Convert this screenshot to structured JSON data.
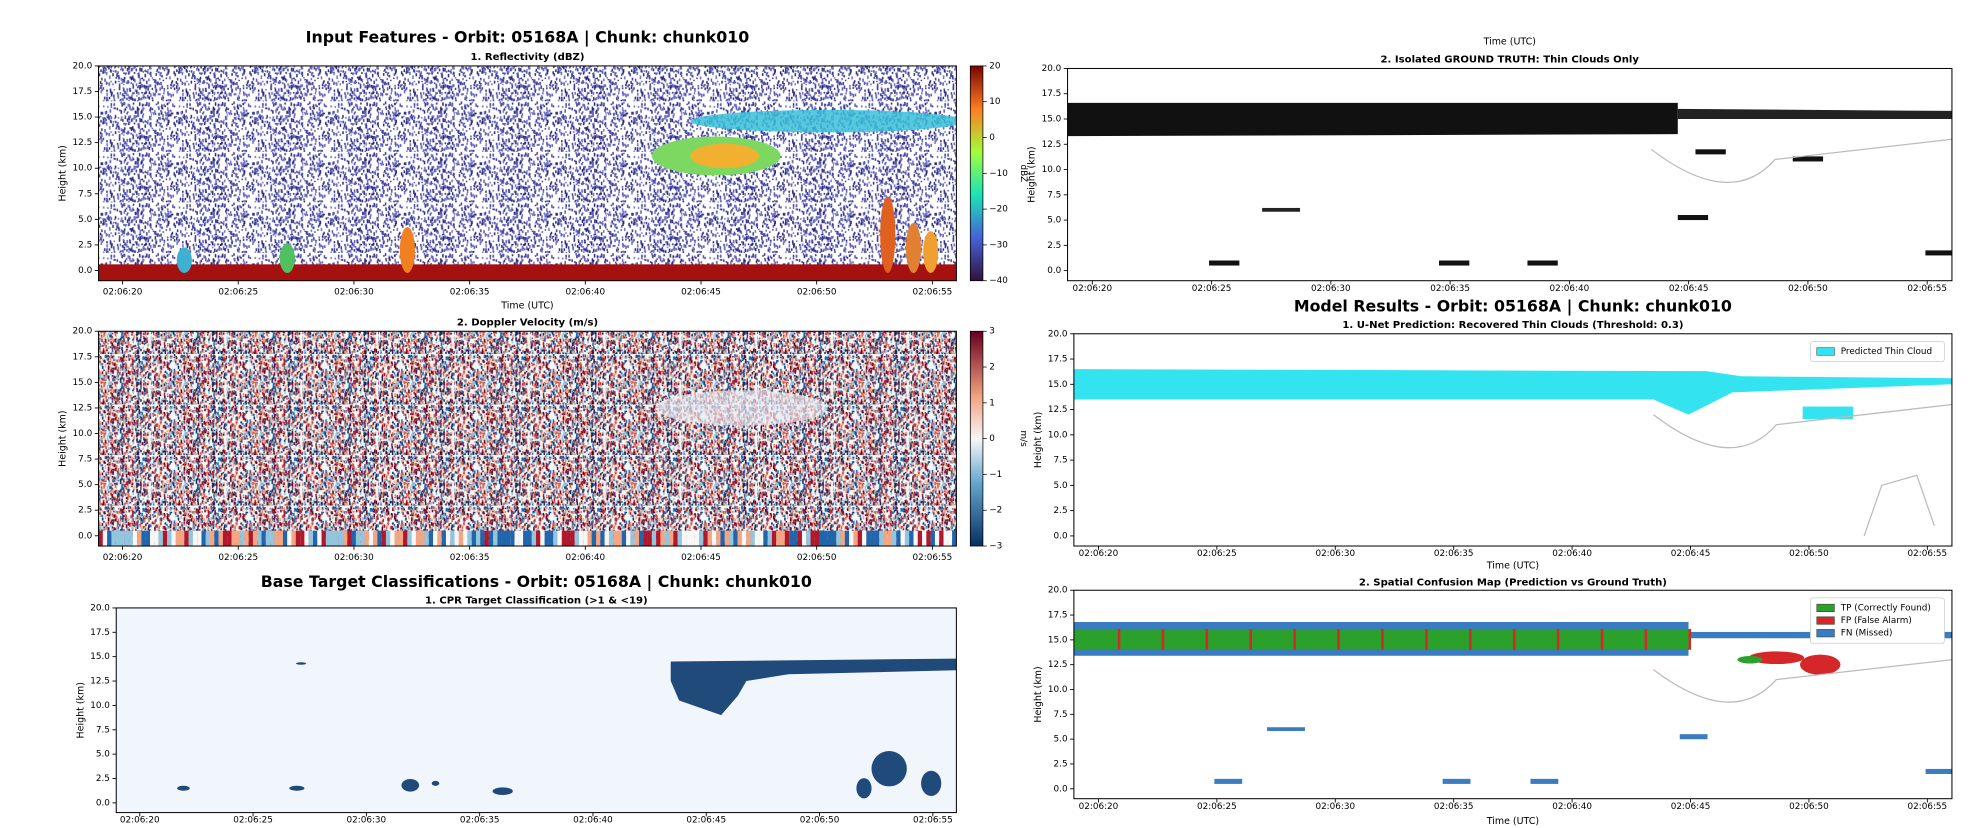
{
  "chart_data": [
    {
      "type": "heatmap",
      "title": "Input Features - Orbit: 05168A | Chunk: chunk010",
      "subtitle": "1. Reflectivity (dBZ)",
      "ylabel": "Height (km)",
      "xlabel": "Time (UTC)",
      "ylim": [
        -1,
        20
      ],
      "yticks": [
        {
          "value": 0,
          "label": "0.0"
        },
        {
          "value": 2.5,
          "label": "2.5"
        },
        {
          "value": 5,
          "label": "5.0"
        },
        {
          "value": 7.5,
          "label": "7.5"
        },
        {
          "value": 10,
          "label": "10.0"
        },
        {
          "value": 12.5,
          "label": "12.5"
        },
        {
          "value": 15,
          "label": "15.0"
        },
        {
          "value": 17.5,
          "label": "17.5"
        },
        {
          "value": 20,
          "label": "20.0"
        }
      ],
      "xticks": [
        "02:06:20",
        "02:06:25",
        "02:06:30",
        "02:06:35",
        "02:06:40",
        "02:06:45",
        "02:06:50",
        "02:06:55"
      ],
      "colorbar": {
        "label": "dBZ",
        "lim": [
          -40,
          20
        ],
        "ticks": [
          20,
          10,
          0,
          {
            "value": -10,
            "label": "−10"
          },
          {
            "value": -20,
            "label": "−20"
          },
          {
            "value": -30,
            "label": "−30"
          },
          {
            "value": -40,
            "label": "−40"
          }
        ]
      }
    },
    {
      "type": "heatmap",
      "subtitle": "2. Doppler Velocity (m/s)",
      "ylabel": "Height (km)",
      "ylim": [
        -1,
        20
      ],
      "yticks": [
        {
          "value": 0,
          "label": "0.0"
        },
        {
          "value": 2.5,
          "label": "2.5"
        },
        {
          "value": 5,
          "label": "5.0"
        },
        {
          "value": 7.5,
          "label": "7.5"
        },
        {
          "value": 10,
          "label": "10.0"
        },
        {
          "value": 12.5,
          "label": "12.5"
        },
        {
          "value": 15,
          "label": "15.0"
        },
        {
          "value": 17.5,
          "label": "17.5"
        },
        {
          "value": 20,
          "label": "20.0"
        }
      ],
      "xticks": [
        "02:06:20",
        "02:06:25",
        "02:06:30",
        "02:06:35",
        "02:06:40",
        "02:06:45",
        "02:06:50",
        "02:06:55"
      ],
      "colorbar": {
        "label": "m/s",
        "lim": [
          -3,
          3
        ],
        "ticks": [
          3,
          2,
          1,
          0,
          {
            "value": -1,
            "label": "−1"
          },
          {
            "value": -2,
            "label": "−2"
          },
          {
            "value": -3,
            "label": "−3"
          }
        ]
      }
    },
    {
      "type": "heatmap",
      "title": "Base Target Classifications - Orbit: 05168A | Chunk: chunk010",
      "subtitle": "1. CPR Target Classification (>1 & <19)",
      "ylabel": "Height (km)",
      "ylim": [
        -1,
        20
      ],
      "yticks": [
        {
          "value": 0,
          "label": "0.0"
        },
        {
          "value": 2.5,
          "label": "2.5"
        },
        {
          "value": 5,
          "label": "5.0"
        },
        {
          "value": 7.5,
          "label": "7.5"
        },
        {
          "value": 10,
          "label": "10.0"
        },
        {
          "value": 12.5,
          "label": "12.5"
        },
        {
          "value": 15,
          "label": "15.0"
        },
        {
          "value": 17.5,
          "label": "17.5"
        },
        {
          "value": 20,
          "label": "20.0"
        }
      ],
      "xticks": [
        "02:06:20",
        "02:06:25",
        "02:06:30",
        "02:06:35",
        "02:06:40",
        "02:06:45",
        "02:06:50",
        "02:06:55"
      ]
    },
    {
      "type": "heatmap",
      "title": "Time (UTC)",
      "subtitle": "2. Isolated GROUND TRUTH: Thin Clouds Only",
      "ylabel": "Height (km)",
      "ylim": [
        -1,
        20
      ],
      "yticks": [
        {
          "value": 0,
          "label": "0.0"
        },
        {
          "value": 2.5,
          "label": "2.5"
        },
        {
          "value": 5,
          "label": "5.0"
        },
        {
          "value": 7.5,
          "label": "7.5"
        },
        {
          "value": 10,
          "label": "10.0"
        },
        {
          "value": 12.5,
          "label": "12.5"
        },
        {
          "value": 15,
          "label": "15.0"
        },
        {
          "value": 17.5,
          "label": "17.5"
        },
        {
          "value": 20,
          "label": "20.0"
        }
      ],
      "xticks": [
        "02:06:20",
        "02:06:25",
        "02:06:30",
        "02:06:35",
        "02:06:40",
        "02:06:45",
        "02:06:50",
        "02:06:55"
      ]
    },
    {
      "type": "heatmap",
      "title": "Model Results - Orbit: 05168A | Chunk: chunk010",
      "subtitle": "1. U-Net Prediction: Recovered Thin Clouds (Threshold: 0.3)",
      "ylabel": "Height (km)",
      "xlabel": "Time (UTC)",
      "ylim": [
        -1,
        20
      ],
      "yticks": [
        {
          "value": 0,
          "label": "0.0"
        },
        {
          "value": 2.5,
          "label": "2.5"
        },
        {
          "value": 5,
          "label": "5.0"
        },
        {
          "value": 7.5,
          "label": "7.5"
        },
        {
          "value": 10,
          "label": "10.0"
        },
        {
          "value": 12.5,
          "label": "12.5"
        },
        {
          "value": 15,
          "label": "15.0"
        },
        {
          "value": 17.5,
          "label": "17.5"
        },
        {
          "value": 20,
          "label": "20.0"
        }
      ],
      "xticks": [
        "02:06:20",
        "02:06:25",
        "02:06:30",
        "02:06:35",
        "02:06:40",
        "02:06:45",
        "02:06:50",
        "02:06:55"
      ],
      "legend": [
        {
          "name": "Predicted Thin Cloud",
          "color": "#33e3f0"
        }
      ]
    },
    {
      "type": "heatmap",
      "subtitle": "2. Spatial Confusion Map (Prediction vs Ground Truth)",
      "ylabel": "Height (km)",
      "xlabel": "Time (UTC)",
      "ylim": [
        -1,
        20
      ],
      "yticks": [
        {
          "value": 0,
          "label": "0.0"
        },
        {
          "value": 2.5,
          "label": "2.5"
        },
        {
          "value": 5,
          "label": "5.0"
        },
        {
          "value": 7.5,
          "label": "7.5"
        },
        {
          "value": 10,
          "label": "10.0"
        },
        {
          "value": 12.5,
          "label": "12.5"
        },
        {
          "value": 15,
          "label": "15.0"
        },
        {
          "value": 17.5,
          "label": "17.5"
        },
        {
          "value": 20,
          "label": "20.0"
        }
      ],
      "xticks": [
        "02:06:20",
        "02:06:25",
        "02:06:30",
        "02:06:35",
        "02:06:40",
        "02:06:45",
        "02:06:50",
        "02:06:55"
      ],
      "legend": [
        {
          "name": "TP (Correctly Found)",
          "color": "#2ca02c"
        },
        {
          "name": "FP (False Alarm)",
          "color": "#d62728"
        },
        {
          "name": "FN (Missed)",
          "color": "#3a7cc0"
        }
      ]
    }
  ]
}
